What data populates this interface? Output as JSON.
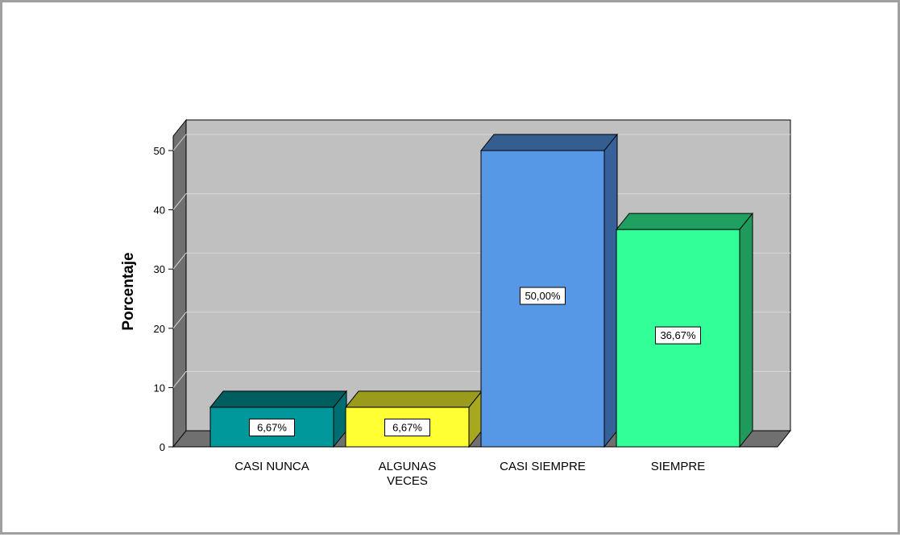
{
  "chart_data": {
    "type": "bar",
    "ylabel": "Porcentaje",
    "ylim": [
      0,
      50
    ],
    "yticks": [
      "0",
      "10",
      "20",
      "30",
      "40",
      "50"
    ],
    "grid": true,
    "categories": [
      {
        "lines": [
          "CASI NUNCA"
        ]
      },
      {
        "lines": [
          "ALGUNAS",
          "VECES"
        ]
      },
      {
        "lines": [
          "CASI SIEMPRE"
        ]
      },
      {
        "lines": [
          "SIEMPRE"
        ]
      }
    ],
    "values": [
      6.67,
      6.67,
      50.0,
      36.67
    ],
    "data_labels": [
      "6,67%",
      "6,67%",
      "50,00%",
      "36,67%"
    ],
    "colors": [
      {
        "front": "#00989a",
        "top": "#005e5f",
        "side": "#006e70"
      },
      {
        "front": "#ffff33",
        "top": "#9a9a1c",
        "side": "#a8a81e"
      },
      {
        "front": "#5798e6",
        "top": "#355e90",
        "side": "#35609a"
      },
      {
        "front": "#33ff99",
        "top": "#20a060",
        "side": "#1f9a5c"
      }
    ],
    "plot_background": "#c0c0c0",
    "wall_color": "#707070"
  }
}
